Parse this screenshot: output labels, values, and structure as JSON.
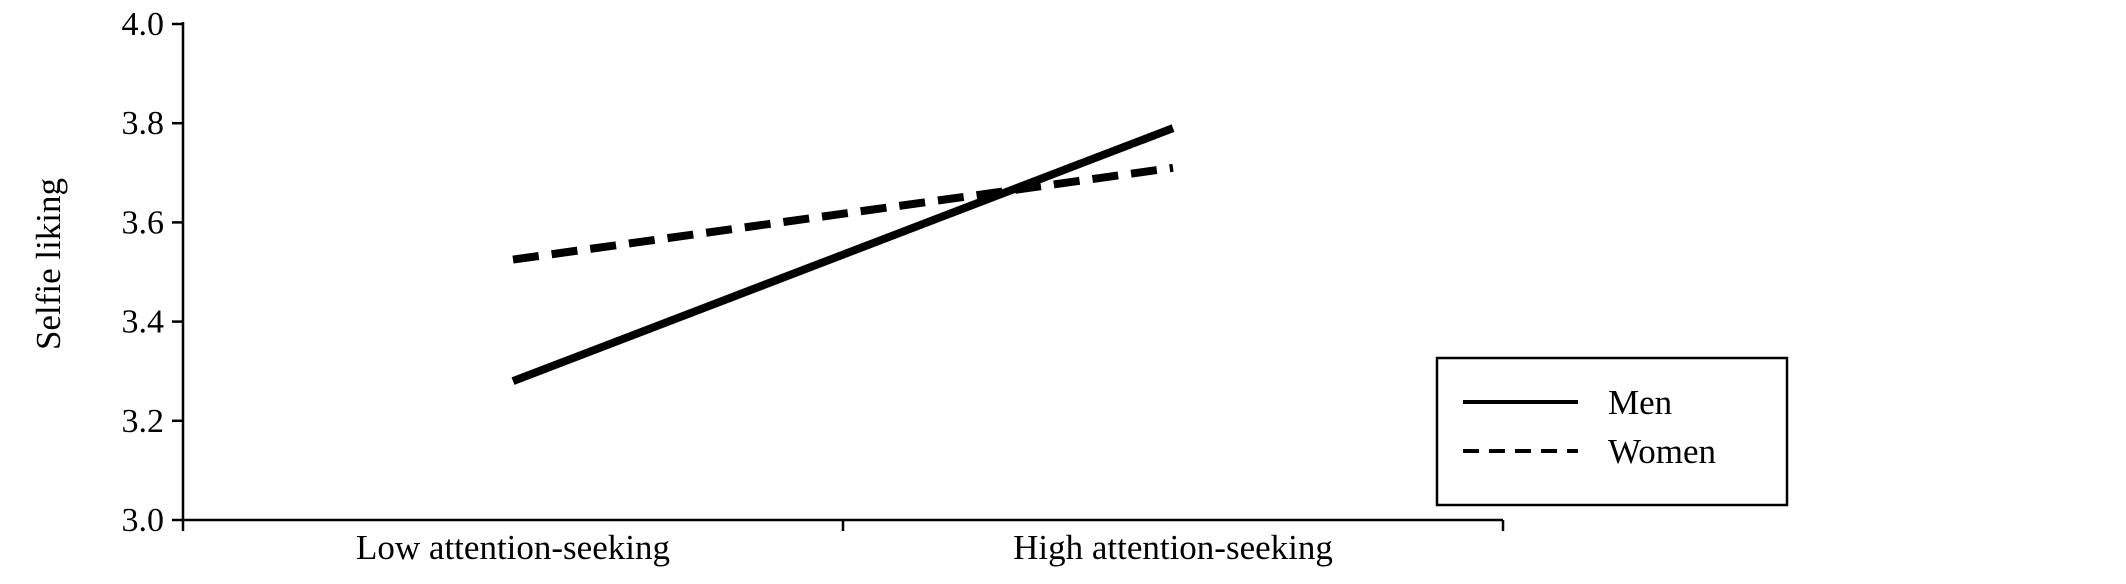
{
  "chart_data": {
    "type": "line",
    "title": "",
    "xlabel": "",
    "ylabel": "Selfie liking",
    "categories": [
      "Low attention-seeking",
      "High attention-seeking"
    ],
    "ylim": [
      3.0,
      4.0
    ],
    "yticks": [
      "3.0",
      "3.2",
      "3.4",
      "3.6",
      "3.8",
      "4.0"
    ],
    "grid": false,
    "legend_position": "bottom-right",
    "series": [
      {
        "name": "Men",
        "values": [
          3.28,
          3.79
        ],
        "line_style": "solid",
        "color": "#000000"
      },
      {
        "name": "Women",
        "values": [
          3.525,
          3.71
        ],
        "line_style": "dashed",
        "color": "#000000"
      }
    ]
  }
}
